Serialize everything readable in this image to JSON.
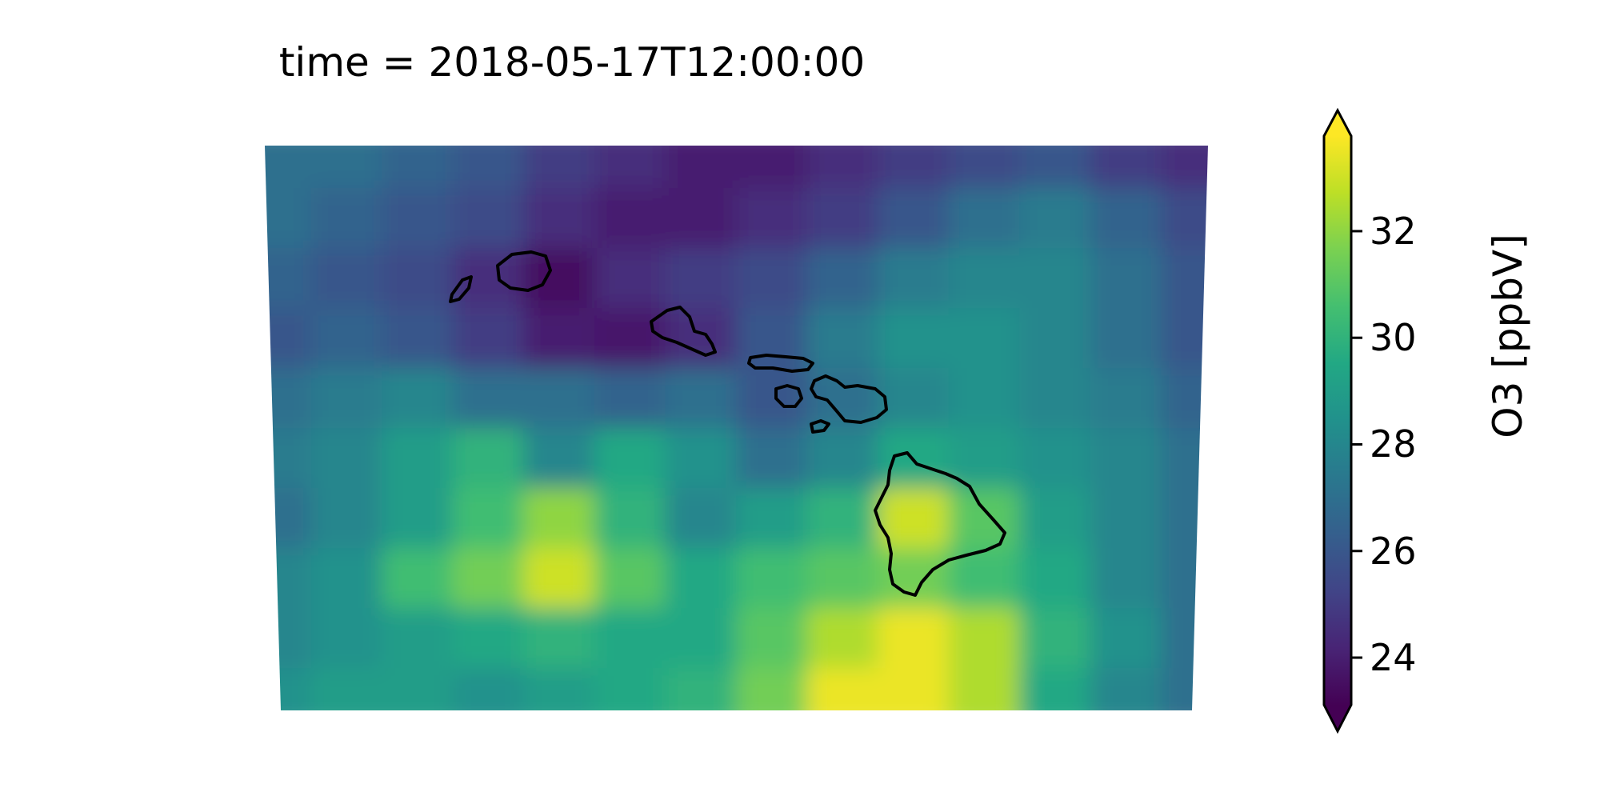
{
  "chart_data": {
    "type": "heatmap",
    "title": "time = 2018-05-17T12:00:00",
    "variable": "O3",
    "colorbar": {
      "label": "O3 [ppbV]",
      "vmin": 23.1,
      "vmax": 33.8,
      "ticks": [
        24,
        26,
        28,
        30,
        32
      ],
      "tick_labels": [
        "24",
        "26",
        "28",
        "30",
        "32"
      ],
      "extend": "both",
      "colormap": "viridis"
    },
    "field_description_grid": {
      "rows": 10,
      "cols": 14,
      "values": [
        [
          27,
          27,
          26.5,
          26,
          25,
          24.5,
          24,
          24,
          24.5,
          25,
          25.5,
          26,
          25,
          24.5
        ],
        [
          27,
          26.5,
          26,
          25.5,
          24.5,
          24,
          24,
          24.5,
          25,
          26,
          27,
          27.5,
          26.5,
          25.5
        ],
        [
          26.5,
          26,
          25.5,
          24.5,
          23.5,
          24.5,
          25,
          25.5,
          26.5,
          27.5,
          28,
          28,
          27,
          26
        ],
        [
          26,
          26.5,
          26,
          25,
          24,
          23.8,
          24.5,
          26,
          27.5,
          28.5,
          28.5,
          28,
          27,
          26
        ],
        [
          27,
          27.5,
          28,
          27,
          27,
          26.5,
          27,
          26,
          27,
          28,
          28.5,
          28,
          27.5,
          26.5
        ],
        [
          27.5,
          28,
          29,
          30,
          28,
          29.5,
          28.5,
          27,
          28,
          29.5,
          29,
          28.5,
          28,
          27
        ],
        [
          27,
          28,
          29,
          30.5,
          32,
          30,
          28,
          29,
          30,
          33,
          31,
          29,
          28,
          27
        ],
        [
          28,
          28.5,
          30.5,
          31.5,
          33,
          31,
          29.5,
          30.5,
          31,
          31.5,
          30.5,
          29.5,
          28,
          27
        ],
        [
          28,
          28.5,
          29,
          29.5,
          30,
          29.5,
          29.5,
          31,
          32.5,
          33.5,
          32.5,
          30,
          28.5,
          27
        ],
        [
          28.5,
          29,
          29,
          28.5,
          29,
          29.5,
          30,
          31.5,
          33.5,
          33.5,
          32.5,
          29.5,
          28,
          27
        ]
      ]
    },
    "islands": [
      "Kauai",
      "Niihau",
      "Oahu",
      "Molokai",
      "Lanai",
      "Maui",
      "Kahoolawe",
      "Hawaii"
    ]
  }
}
